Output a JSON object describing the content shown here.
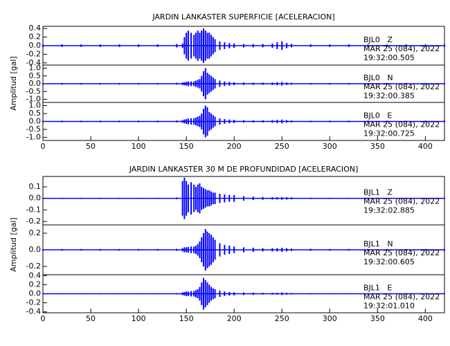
{
  "chart_data": [
    {
      "type": "trace",
      "title": "JARDIN LANKASTER SUPERFICIE [ACELERACION]",
      "y_label": "Amplitud [gal]",
      "xlim": [
        0,
        420
      ],
      "xticks": [
        0,
        50,
        100,
        150,
        200,
        250,
        300,
        350,
        400
      ],
      "x": [
        0,
        20,
        40,
        60,
        80,
        100,
        120,
        140,
        146,
        148,
        150,
        152,
        155,
        158,
        160,
        162,
        164,
        166,
        168,
        170,
        172,
        174,
        176,
        178,
        180,
        185,
        190,
        195,
        200,
        210,
        220,
        230,
        240,
        245,
        250,
        255,
        260,
        280,
        300,
        320,
        340,
        360,
        380,
        400,
        420
      ],
      "series": [
        {
          "name": "BJL0   Z",
          "date": "MAR 25 (084), 2022",
          "time": "19:32:00.505",
          "color": "#0000ff",
          "ylim": [
            -0.45,
            0.45
          ],
          "yticks": [
            -0.4,
            -0.2,
            {
              "value": 0,
              "label": "0.0"
            },
            0.2,
            0.4
          ],
          "values": [
            0.03,
            0.03,
            0.03,
            0.03,
            0.03,
            0.03,
            0.03,
            0.04,
            0.05,
            0.2,
            0.3,
            0.35,
            0.3,
            0.25,
            0.3,
            0.35,
            0.3,
            0.35,
            0.4,
            0.35,
            0.3,
            0.3,
            0.25,
            0.2,
            0.15,
            0.1,
            0.08,
            0.06,
            0.05,
            0.04,
            0.04,
            0.04,
            0.05,
            0.08,
            0.1,
            0.06,
            0.04,
            0.03,
            0.03,
            0.03,
            0.03,
            0.03,
            0.03,
            0.03,
            0.03
          ]
        },
        {
          "name": "BJL0   N",
          "date": "MAR 25 (084), 2022",
          "time": "19:32:00.385",
          "color": "#0000ff",
          "ylim": [
            -1.2,
            1.2
          ],
          "yticks": [
            {
              "value": -1,
              "label": "-1.0"
            },
            -0.5,
            {
              "value": 0,
              "label": "0.0"
            },
            0.5,
            {
              "value": 1,
              "label": "1.0"
            }
          ],
          "values": [
            0.05,
            0.05,
            0.05,
            0.05,
            0.05,
            0.05,
            0.05,
            0.06,
            0.08,
            0.1,
            0.12,
            0.15,
            0.15,
            0.15,
            0.2,
            0.25,
            0.3,
            0.5,
            0.8,
            1.0,
            0.7,
            0.6,
            0.5,
            0.4,
            0.3,
            0.2,
            0.15,
            0.12,
            0.1,
            0.08,
            0.07,
            0.07,
            0.08,
            0.1,
            0.12,
            0.08,
            0.06,
            0.05,
            0.05,
            0.05,
            0.05,
            0.05,
            0.05,
            0.05,
            0.05
          ]
        },
        {
          "name": "BJL0   E",
          "date": "MAR 25 (084), 2022",
          "time": "19:32:00.725",
          "color": "#0000ff",
          "ylim": [
            -1.2,
            1.2
          ],
          "yticks": [
            {
              "value": -1,
              "label": "-1.0"
            },
            -0.5,
            {
              "value": 0,
              "label": "0.0"
            },
            0.5,
            {
              "value": 1,
              "label": "1.0"
            }
          ],
          "values": [
            0.05,
            0.05,
            0.05,
            0.05,
            0.05,
            0.05,
            0.05,
            0.06,
            0.08,
            0.12,
            0.15,
            0.18,
            0.2,
            0.2,
            0.25,
            0.3,
            0.35,
            0.5,
            0.8,
            1.0,
            0.9,
            0.6,
            0.5,
            0.4,
            0.3,
            0.2,
            0.15,
            0.12,
            0.1,
            0.08,
            0.07,
            0.07,
            0.08,
            0.1,
            0.12,
            0.08,
            0.06,
            0.05,
            0.05,
            0.05,
            0.05,
            0.05,
            0.05,
            0.05,
            0.05
          ]
        }
      ]
    },
    {
      "type": "trace",
      "title": "JARDIN LANKASTER 30 M DE PROFUNDIDAD [ACELERACION]",
      "y_label": "Amplitud [gal]",
      "xlim": [
        0,
        420
      ],
      "xticks": [
        0,
        50,
        100,
        150,
        200,
        250,
        300,
        350,
        400
      ],
      "x": [
        0,
        20,
        40,
        60,
        80,
        100,
        120,
        140,
        146,
        148,
        150,
        152,
        155,
        158,
        160,
        162,
        164,
        166,
        168,
        170,
        172,
        174,
        176,
        178,
        180,
        185,
        190,
        195,
        200,
        210,
        220,
        230,
        240,
        245,
        250,
        255,
        260,
        280,
        300,
        320,
        340,
        360,
        380,
        400,
        420
      ],
      "series": [
        {
          "name": "BJL1   Z",
          "date": "MAR 25 (084), 2022",
          "time": "19:32:02.885",
          "color": "#0000ff",
          "ylim": [
            -0.23,
            0.19
          ],
          "yticks": [
            -0.2,
            -0.1,
            {
              "value": 0,
              "label": "0.0"
            },
            0.1
          ],
          "values": [
            0.005,
            0.005,
            0.005,
            0.005,
            0.005,
            0.005,
            0.005,
            0.008,
            0.15,
            0.18,
            0.15,
            0.12,
            0.14,
            0.12,
            0.1,
            0.12,
            0.13,
            0.1,
            0.09,
            0.08,
            0.07,
            0.07,
            0.06,
            0.05,
            0.05,
            0.04,
            0.035,
            0.03,
            0.03,
            0.02,
            0.015,
            0.012,
            0.01,
            0.01,
            0.012,
            0.01,
            0.008,
            0.006,
            0.005,
            0.005,
            0.005,
            0.005,
            0.005,
            0.005,
            0.005
          ]
        },
        {
          "name": "BJL1   N",
          "date": "MAR 25 (084), 2022",
          "time": "19:32:00.605",
          "color": "#0000ff",
          "ylim": [
            -0.3,
            0.3
          ],
          "yticks": [
            -0.2,
            {
              "value": 0,
              "label": "0.0"
            },
            0.2
          ],
          "values": [
            0.01,
            0.01,
            0.01,
            0.01,
            0.01,
            0.01,
            0.01,
            0.012,
            0.02,
            0.03,
            0.03,
            0.035,
            0.04,
            0.04,
            0.05,
            0.07,
            0.1,
            0.15,
            0.2,
            0.25,
            0.22,
            0.2,
            0.18,
            0.15,
            0.12,
            0.08,
            0.06,
            0.05,
            0.04,
            0.03,
            0.025,
            0.02,
            0.02,
            0.02,
            0.025,
            0.02,
            0.015,
            0.012,
            0.01,
            0.01,
            0.01,
            0.01,
            0.01,
            0.01,
            0.01
          ]
        },
        {
          "name": "BJL1   E",
          "date": "MAR 25 (084), 2022",
          "time": "19:32:01.010",
          "color": "#0000ff",
          "ylim": [
            -0.42,
            0.42
          ],
          "yticks": [
            -0.4,
            -0.2,
            {
              "value": 0,
              "label": "0.0"
            },
            0.2,
            0.4
          ],
          "values": [
            0.01,
            0.01,
            0.01,
            0.01,
            0.01,
            0.01,
            0.01,
            0.015,
            0.03,
            0.04,
            0.05,
            0.05,
            0.06,
            0.06,
            0.08,
            0.1,
            0.15,
            0.25,
            0.35,
            0.3,
            0.25,
            0.2,
            0.15,
            0.12,
            0.1,
            0.07,
            0.05,
            0.04,
            0.035,
            0.03,
            0.025,
            0.02,
            0.02,
            0.02,
            0.03,
            0.02,
            0.015,
            0.012,
            0.01,
            0.01,
            0.01,
            0.01,
            0.01,
            0.01,
            0.01
          ]
        }
      ]
    }
  ]
}
